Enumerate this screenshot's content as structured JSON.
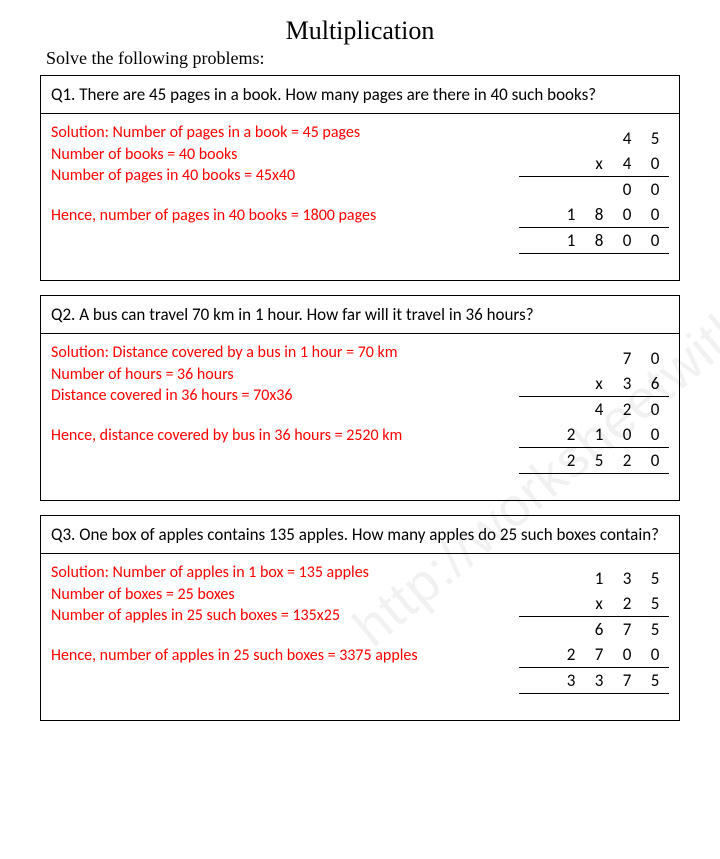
{
  "title": "Multiplication",
  "subtitle": "Solve the following problems:",
  "watermark": "http://worksheetwithfun.com",
  "questions": [
    {
      "number": "Q1.",
      "text": "There are 45 pages in a book. How many pages are there in 40 such books?",
      "solution": [
        "Solution: Number of pages in a book = 45 pages",
        "Number of books = 40 books",
        "Number of pages in 40 books = 45x40",
        "",
        "Hence, number of pages in 40 books = 1800 pages"
      ],
      "calc_cols": 4,
      "calc_rows": [
        {
          "cells": [
            "",
            "",
            "4",
            "5"
          ],
          "top": false,
          "bottom": false
        },
        {
          "cells": [
            "",
            "x",
            "4",
            "0"
          ],
          "top": false,
          "bottom": true
        },
        {
          "cells": [
            "",
            "",
            "0",
            "0"
          ],
          "top": false,
          "bottom": false
        },
        {
          "cells": [
            "1",
            "8",
            "0",
            "0"
          ],
          "top": false,
          "bottom": true
        },
        {
          "cells": [
            "1",
            "8",
            "0",
            "0"
          ],
          "top": false,
          "bottom": true
        }
      ]
    },
    {
      "number": "Q2.",
      "text": "A bus can travel 70 km in 1 hour. How far will it travel in 36 hours?",
      "solution": [
        "Solution: Distance covered by a bus in 1 hour = 70 km",
        "Number of hours = 36 hours",
        "Distance covered in 36 hours = 70x36",
        "",
        "Hence, distance covered by bus in 36 hours = 2520 km"
      ],
      "calc_cols": 4,
      "calc_rows": [
        {
          "cells": [
            "",
            "",
            "7",
            "0"
          ],
          "top": false,
          "bottom": false
        },
        {
          "cells": [
            "",
            "x",
            "3",
            "6"
          ],
          "top": false,
          "bottom": true
        },
        {
          "cells": [
            "",
            "4",
            "2",
            "0"
          ],
          "top": false,
          "bottom": false
        },
        {
          "cells": [
            "2",
            "1",
            "0",
            "0"
          ],
          "top": false,
          "bottom": true
        },
        {
          "cells": [
            "2",
            "5",
            "2",
            "0"
          ],
          "top": false,
          "bottom": true
        }
      ]
    },
    {
      "number": "Q3.",
      "text": "One box of apples contains 135 apples. How many apples do 25 such boxes contain?",
      "solution": [
        "Solution: Number of apples in 1 box = 135 apples",
        "Number of boxes = 25 boxes",
        "Number of apples in 25 such boxes = 135x25",
        "",
        "Hence, number of apples in 25 such boxes  =  3375 apples"
      ],
      "calc_cols": 4,
      "calc_rows": [
        {
          "cells": [
            "",
            "1",
            "3",
            "5"
          ],
          "top": false,
          "bottom": false
        },
        {
          "cells": [
            "",
            "x",
            "2",
            "5"
          ],
          "top": false,
          "bottom": true
        },
        {
          "cells": [
            "",
            "6",
            "7",
            "5"
          ],
          "top": false,
          "bottom": false
        },
        {
          "cells": [
            "2",
            "7",
            "0",
            "0"
          ],
          "top": false,
          "bottom": true
        },
        {
          "cells": [
            "3",
            "3",
            "7",
            "5"
          ],
          "top": false,
          "bottom": true
        }
      ]
    }
  ]
}
